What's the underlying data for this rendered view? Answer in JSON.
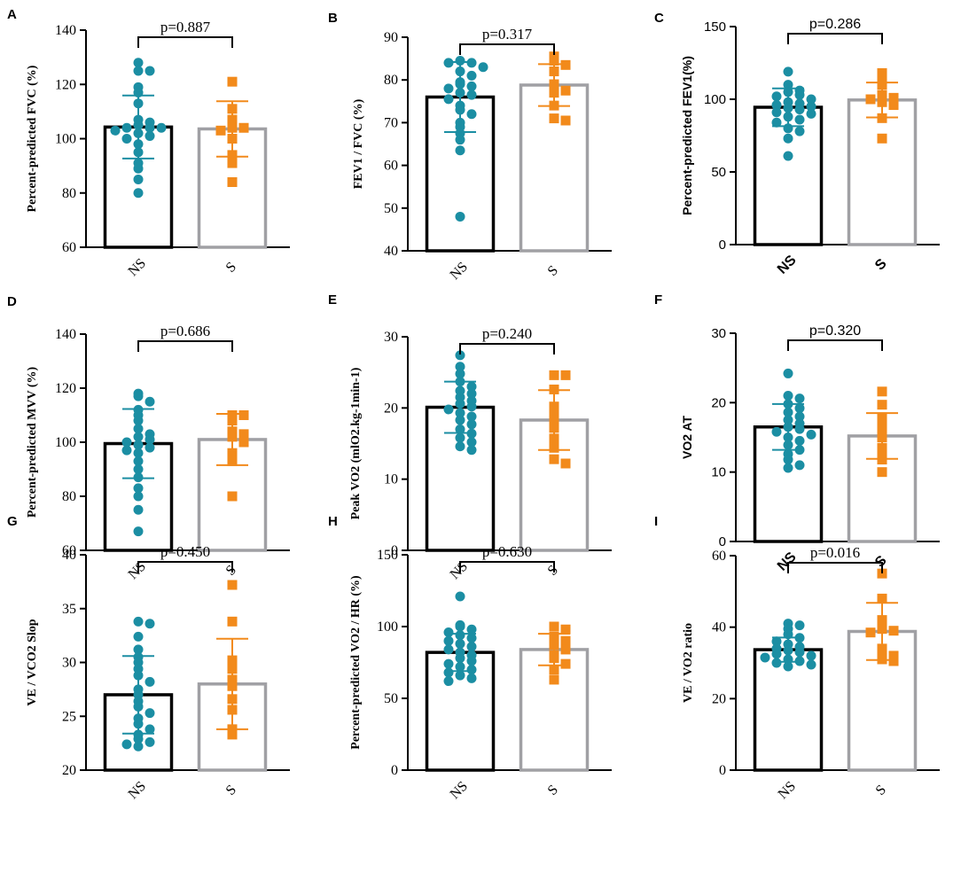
{
  "colors": {
    "ns_point": "#1b8ea3",
    "s_point": "#f28a1b",
    "ns_bar": "#000000",
    "s_bar": "#a0a0a4",
    "axis": "#000000"
  },
  "chart_data": [
    {
      "type": "bar",
      "panel": "A",
      "title": "",
      "xlabel": "",
      "ylabel": "Percent-predicted FVC (%)",
      "categories": [
        "NS",
        "S"
      ],
      "ylim": [
        60,
        140
      ],
      "yticks": [
        "60",
        "80",
        "100",
        "120",
        "140"
      ],
      "means": [
        104.3,
        103.6
      ],
      "sd": [
        11.6,
        10.2
      ],
      "p_value": "p=0.887",
      "font": "serif",
      "points": [
        [
          128,
          125,
          125,
          119,
          117,
          113,
          107,
          106,
          105,
          104,
          104,
          104,
          103,
          102,
          101,
          100,
          98,
          95,
          91,
          89,
          85,
          80
        ],
        [
          121,
          111,
          107,
          104,
          104,
          103,
          100,
          94,
          91,
          84
        ]
      ]
    },
    {
      "type": "bar",
      "panel": "B",
      "title": "",
      "xlabel": "",
      "ylabel": "FEV1 / FVC (%)",
      "categories": [
        "NS",
        "S"
      ],
      "ylim": [
        40,
        90
      ],
      "yticks": [
        "40",
        "50",
        "60",
        "70",
        "80",
        "90"
      ],
      "means": [
        76.0,
        78.8
      ],
      "sd": [
        8.2,
        4.9
      ],
      "p_value": "p=0.317",
      "font": "serif",
      "points": [
        [
          84.5,
          84,
          84,
          83,
          82,
          81,
          79.5,
          79,
          78.5,
          78,
          77,
          76.5,
          75.5,
          74,
          73,
          72,
          70,
          69,
          67.5,
          66,
          63.5,
          48
        ],
        [
          85.5,
          84.5,
          83.5,
          82,
          79,
          77.5,
          77,
          74,
          71,
          70.5
        ]
      ]
    },
    {
      "type": "bar",
      "panel": "C",
      "title": "",
      "xlabel": "",
      "ylabel": "Percent-predicted FEV1(%)",
      "categories": [
        "NS",
        "S"
      ],
      "ylim": [
        0,
        150
      ],
      "yticks": [
        "0",
        "50",
        "100",
        "150"
      ],
      "means": [
        94.5,
        99.5
      ],
      "sd": [
        13.0,
        12.0
      ],
      "p_value": "p=0.286",
      "font": "sans",
      "points": [
        [
          119,
          110,
          106,
          105,
          103,
          102,
          100,
          98,
          97,
          96,
          95,
          94,
          93,
          91,
          90,
          88,
          86,
          84,
          80,
          78,
          73,
          61
        ],
        [
          118,
          112,
          110,
          103,
          101,
          100,
          98,
          96,
          87,
          73
        ]
      ]
    },
    {
      "type": "bar",
      "panel": "D",
      "title": "",
      "xlabel": "",
      "ylabel": "Percent-predicted MVV (%)",
      "categories": [
        "NS",
        "S"
      ],
      "ylim": [
        60,
        140
      ],
      "yticks": [
        "60",
        "80",
        "100",
        "120",
        "140"
      ],
      "means": [
        99.5,
        101.0
      ],
      "sd": [
        12.8,
        9.5
      ],
      "p_value": "p=0.686",
      "font": "serif",
      "points": [
        [
          118,
          117,
          115,
          112,
          110,
          108,
          105,
          103,
          102,
          101,
          100,
          99,
          98,
          97,
          96,
          93,
          90,
          87,
          83,
          80,
          75,
          67
        ],
        [
          110,
          110,
          108,
          104,
          103,
          102,
          100,
          96,
          93,
          80
        ]
      ]
    },
    {
      "type": "bar",
      "panel": "E",
      "title": "",
      "xlabel": "",
      "ylabel": "Peak VO2 (mlO2.kg-1min-1)",
      "categories": [
        "NS",
        "S"
      ],
      "ylim": [
        0,
        30
      ],
      "yticks": [
        "0",
        "10",
        "20",
        "30"
      ],
      "means": [
        20.1,
        18.3
      ],
      "sd": [
        3.6,
        4.2
      ],
      "p_value": "p=0.240",
      "font": "serif",
      "points": [
        [
          27.4,
          25.8,
          24.8,
          23.7,
          23,
          22.4,
          22,
          21.5,
          21,
          20.6,
          20.2,
          19.8,
          19.3,
          18.8,
          18.3,
          17.7,
          17,
          16.4,
          15.8,
          15.2,
          14.6,
          14.1
        ],
        [
          24.6,
          24.6,
          22.6,
          20.2,
          19.5,
          18.3,
          17.2,
          15.7,
          14.4,
          12.8,
          12.2
        ]
      ]
    },
    {
      "type": "bar",
      "panel": "F",
      "title": "",
      "xlabel": "",
      "ylabel": "VO2 AT",
      "categories": [
        "NS",
        "S"
      ],
      "ylim": [
        0,
        30
      ],
      "yticks": [
        "0",
        "10",
        "20",
        "30"
      ],
      "means": [
        16.5,
        15.2
      ],
      "sd": [
        3.3,
        3.3
      ],
      "p_value": "p=0.320",
      "font": "sans",
      "points": [
        [
          24.2,
          21,
          20.6,
          19.8,
          19.2,
          18.6,
          18,
          17.5,
          17,
          16.5,
          16.2,
          15.8,
          15.4,
          15,
          14.5,
          13.9,
          13.2,
          12.6,
          11.8,
          11,
          10.6
        ],
        [
          21.6,
          19.7,
          17.9,
          17.3,
          16.1,
          15,
          13.5,
          12.3,
          11.8,
          10
        ]
      ]
    },
    {
      "type": "bar",
      "panel": "G",
      "title": "",
      "xlabel": "",
      "ylabel": "VE / VCO2 Slop",
      "categories": [
        "NS",
        "S"
      ],
      "ylim": [
        20,
        40
      ],
      "yticks": [
        "20",
        "25",
        "30",
        "35",
        "40"
      ],
      "means": [
        27.0,
        28.0
      ],
      "sd": [
        3.6,
        4.2
      ],
      "p_value": "p=0.450",
      "font": "serif",
      "points": [
        [
          33.8,
          33.6,
          32.4,
          31.2,
          30.5,
          30,
          29.4,
          28.8,
          28.2,
          27.5,
          27,
          26.4,
          25.9,
          25.3,
          24.8,
          24.3,
          23.8,
          23.3,
          22.9,
          22.6,
          22.4,
          22.2
        ],
        [
          37.2,
          33.8,
          30.2,
          29.4,
          28.4,
          27.8,
          26.6,
          25.6,
          23.8,
          23.3
        ]
      ]
    },
    {
      "type": "bar",
      "panel": "H",
      "title": "",
      "xlabel": "",
      "ylabel": "Percent-predicted VO2 / HR (%)",
      "categories": [
        "NS",
        "S"
      ],
      "ylim": [
        0,
        150
      ],
      "yticks": [
        "0",
        "50",
        "100",
        "150"
      ],
      "means": [
        82.0,
        84.0
      ],
      "sd": [
        13.0,
        11.0
      ],
      "p_value": "p=0.630",
      "font": "serif",
      "points": [
        [
          121,
          101,
          100,
          98,
          96,
          94,
          92,
          90,
          88,
          86,
          84,
          82,
          80,
          78,
          76,
          74,
          72,
          70,
          68,
          66,
          64,
          62
        ],
        [
          100,
          98,
          93,
          90,
          87,
          84,
          80,
          78,
          74,
          70,
          63
        ]
      ]
    },
    {
      "type": "bar",
      "panel": "I",
      "title": "",
      "xlabel": "",
      "ylabel": "VE / VO2 ratio",
      "categories": [
        "NS",
        "S"
      ],
      "ylim": [
        0,
        60
      ],
      "yticks": [
        "0",
        "20",
        "40",
        "60"
      ],
      "means": [
        33.7,
        38.8
      ],
      "sd": [
        3.4,
        8.0
      ],
      "p_value": "p=0.016",
      "font": "serif",
      "points": [
        [
          41,
          40.5,
          39.5,
          38,
          37,
          36,
          35.2,
          34.5,
          34,
          33.5,
          33,
          32.5,
          32,
          31.5,
          31,
          30.5,
          30,
          29.5,
          29
        ],
        [
          55,
          48,
          42,
          39.5,
          39,
          38.5,
          34,
          33,
          32,
          31,
          30.5
        ]
      ]
    }
  ]
}
